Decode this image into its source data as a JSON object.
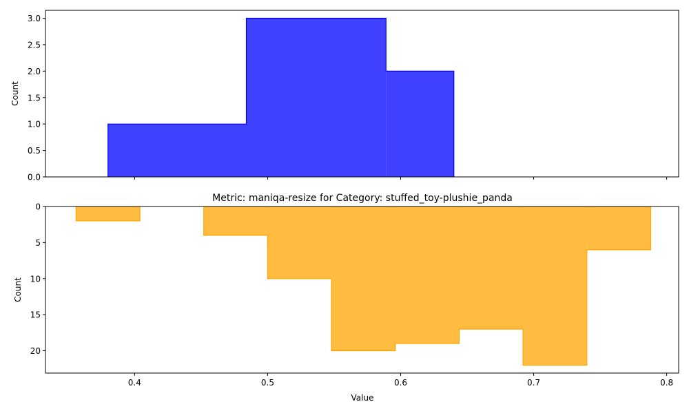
{
  "chart_data": [
    {
      "type": "histogram",
      "title": "",
      "xlabel": "",
      "ylabel": "Count",
      "color": "#0000ff",
      "y_inverted": false,
      "xlim": [
        0.333,
        0.809
      ],
      "ylim": [
        0,
        3.15
      ],
      "x_ticks": [],
      "x_tick_marks": [
        0.4,
        0.5,
        0.6,
        0.7,
        0.8
      ],
      "y_ticks": [
        "0.0",
        "0.5",
        "1.0",
        "1.5",
        "2.0",
        "2.5",
        "3.0"
      ],
      "y_tick_values": [
        0,
        0.5,
        1.0,
        1.5,
        2.0,
        2.5,
        3.0
      ],
      "bins": [
        {
          "x0": 0.38,
          "x1": 0.484,
          "count": 1
        },
        {
          "x0": 0.484,
          "x1": 0.589,
          "count": 3
        },
        {
          "x0": 0.589,
          "x1": 0.64,
          "count": 2
        }
      ]
    },
    {
      "type": "histogram",
      "title": "Metric: maniqa-resize for Category: stuffed_toy-plushie_panda",
      "xlabel": "Value",
      "ylabel": "Count",
      "color": "#ffa500",
      "y_inverted": true,
      "xlim": [
        0.333,
        0.809
      ],
      "ylim": [
        0,
        23.1
      ],
      "x_ticks": [
        "0.4",
        "0.5",
        "0.6",
        "0.7",
        "0.8"
      ],
      "x_tick_values": [
        0.4,
        0.5,
        0.6,
        0.7,
        0.8
      ],
      "y_ticks": [
        "0",
        "5",
        "10",
        "15",
        "20"
      ],
      "y_tick_values": [
        0,
        5,
        10,
        15,
        20
      ],
      "bins": [
        {
          "x0": 0.356,
          "x1": 0.404,
          "count": 2
        },
        {
          "x0": 0.404,
          "x1": 0.452,
          "count": 0
        },
        {
          "x0": 0.452,
          "x1": 0.5,
          "count": 4
        },
        {
          "x0": 0.5,
          "x1": 0.548,
          "count": 10
        },
        {
          "x0": 0.548,
          "x1": 0.596,
          "count": 20
        },
        {
          "x0": 0.596,
          "x1": 0.644,
          "count": 19
        },
        {
          "x0": 0.644,
          "x1": 0.692,
          "count": 17
        },
        {
          "x0": 0.692,
          "x1": 0.74,
          "count": 22
        },
        {
          "x0": 0.74,
          "x1": 0.788,
          "count": 6
        }
      ]
    }
  ]
}
